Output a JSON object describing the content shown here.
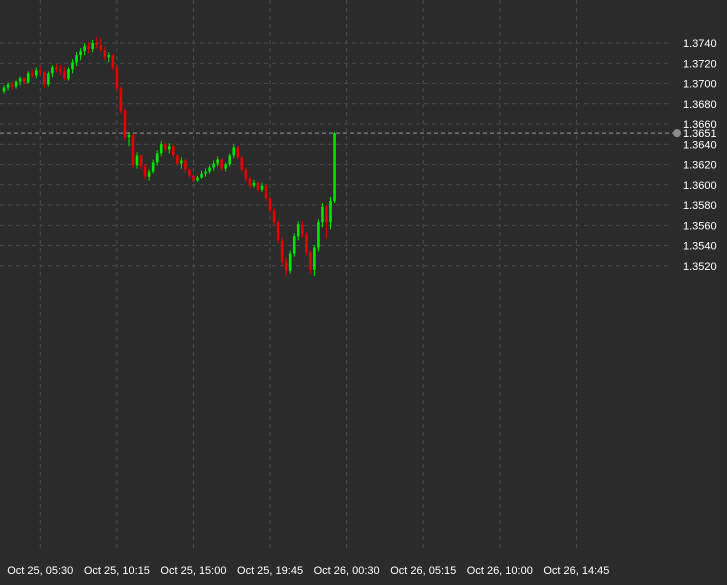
{
  "chart_data": {
    "type": "candlestick",
    "title": "",
    "xlabel": "",
    "ylabel": "",
    "ylim": [
      1.35,
      1.376
    ],
    "grid": true,
    "colors": {
      "background": "#2b2b2b",
      "grid": "#4a4a4a",
      "axis_text": "#ffffff",
      "bull": "#00e600",
      "bear": "#e60000",
      "current_line": "#9a9a9a",
      "current_marker": "#8c8c8c"
    },
    "y_ticks": [
      1.352,
      1.354,
      1.356,
      1.358,
      1.36,
      1.362,
      1.364,
      1.366,
      1.368,
      1.37,
      1.372,
      1.374
    ],
    "y_tick_labels": [
      "1.3520",
      "1.3540",
      "1.3560",
      "1.3580",
      "1.3600",
      "1.3620",
      "1.3640",
      "1.3660",
      "1.3680",
      "1.3700",
      "1.3720",
      "1.3740"
    ],
    "x_ticks": [
      {
        "label": "Oct 25, 05:30",
        "index": 9
      },
      {
        "label": "Oct 25, 10:15",
        "index": 28
      },
      {
        "label": "Oct 25, 15:00",
        "index": 47
      },
      {
        "label": "Oct 25, 19:45",
        "index": 66
      },
      {
        "label": "Oct 26, 00:30",
        "index": 85
      },
      {
        "label": "Oct 26, 05:15",
        "index": 104
      },
      {
        "label": "Oct 26, 10:00",
        "index": 123
      },
      {
        "label": "Oct 26, 14:45",
        "index": 142
      }
    ],
    "current_value": 1.3651,
    "current_label": "1.3651",
    "candles": [
      [
        1.3692,
        1.3698,
        1.369,
        1.3696
      ],
      [
        1.3696,
        1.3701,
        1.3693,
        1.3699
      ],
      [
        1.3699,
        1.3702,
        1.3694,
        1.3697
      ],
      [
        1.3697,
        1.3703,
        1.3695,
        1.3702
      ],
      [
        1.3702,
        1.3707,
        1.3698,
        1.3705
      ],
      [
        1.3705,
        1.3706,
        1.3699,
        1.3701
      ],
      [
        1.3701,
        1.3712,
        1.37,
        1.371
      ],
      [
        1.371,
        1.3714,
        1.3706,
        1.3708
      ],
      [
        1.3708,
        1.3716,
        1.3705,
        1.3713
      ],
      [
        1.3713,
        1.3717,
        1.3708,
        1.3711
      ],
      [
        1.3711,
        1.3712,
        1.3696,
        1.3699
      ],
      [
        1.3699,
        1.3712,
        1.3697,
        1.371
      ],
      [
        1.371,
        1.3718,
        1.3706,
        1.3716
      ],
      [
        1.3716,
        1.372,
        1.3711,
        1.3714
      ],
      [
        1.3714,
        1.3718,
        1.3708,
        1.3712
      ],
      [
        1.3712,
        1.3716,
        1.3703,
        1.3705
      ],
      [
        1.3705,
        1.3716,
        1.3703,
        1.3714
      ],
      [
        1.3714,
        1.3724,
        1.371,
        1.3721
      ],
      [
        1.3721,
        1.3731,
        1.3717,
        1.3728
      ],
      [
        1.3728,
        1.3735,
        1.3723,
        1.3732
      ],
      [
        1.3732,
        1.374,
        1.3728,
        1.3737
      ],
      [
        1.3737,
        1.3741,
        1.373,
        1.3734
      ],
      [
        1.3734,
        1.3743,
        1.3731,
        1.374
      ],
      [
        1.374,
        1.3746,
        1.3735,
        1.3738
      ],
      [
        1.3738,
        1.3745,
        1.3731,
        1.3733
      ],
      [
        1.3733,
        1.3736,
        1.3723,
        1.3726
      ],
      [
        1.3726,
        1.3731,
        1.3721,
        1.3728
      ],
      [
        1.3728,
        1.3729,
        1.3713,
        1.3716
      ],
      [
        1.3716,
        1.3718,
        1.3693,
        1.3695
      ],
      [
        1.3695,
        1.3697,
        1.367,
        1.3673
      ],
      [
        1.3673,
        1.3675,
        1.3644,
        1.3647
      ],
      [
        1.3647,
        1.3652,
        1.3638,
        1.3649
      ],
      [
        1.3649,
        1.365,
        1.3616,
        1.3619
      ],
      [
        1.3619,
        1.3632,
        1.3616,
        1.3629
      ],
      [
        1.3629,
        1.363,
        1.3615,
        1.3618
      ],
      [
        1.3618,
        1.3621,
        1.3605,
        1.3608
      ],
      [
        1.3608,
        1.3615,
        1.3604,
        1.3613
      ],
      [
        1.3613,
        1.3625,
        1.3611,
        1.3622
      ],
      [
        1.3622,
        1.3634,
        1.3619,
        1.3631
      ],
      [
        1.3631,
        1.3643,
        1.3628,
        1.364
      ],
      [
        1.364,
        1.3642,
        1.3632,
        1.3635
      ],
      [
        1.3635,
        1.3641,
        1.3631,
        1.3638
      ],
      [
        1.3638,
        1.364,
        1.3626,
        1.3629
      ],
      [
        1.3629,
        1.363,
        1.3618,
        1.3621
      ],
      [
        1.3621,
        1.3627,
        1.3616,
        1.3624
      ],
      [
        1.3624,
        1.3626,
        1.3612,
        1.3615
      ],
      [
        1.3615,
        1.3616,
        1.3607,
        1.3609
      ],
      [
        1.3609,
        1.3611,
        1.3602,
        1.3604
      ],
      [
        1.3604,
        1.3609,
        1.3603,
        1.3607
      ],
      [
        1.3607,
        1.3614,
        1.3606,
        1.3611
      ],
      [
        1.3611,
        1.3616,
        1.3608,
        1.3613
      ],
      [
        1.3613,
        1.3619,
        1.3611,
        1.3617
      ],
      [
        1.3617,
        1.3624,
        1.3614,
        1.3621
      ],
      [
        1.3621,
        1.3628,
        1.3618,
        1.3625
      ],
      [
        1.3625,
        1.3626,
        1.3614,
        1.3616
      ],
      [
        1.3616,
        1.3622,
        1.3613,
        1.362
      ],
      [
        1.362,
        1.3631,
        1.3618,
        1.3629
      ],
      [
        1.3629,
        1.364,
        1.3626,
        1.3637
      ],
      [
        1.3637,
        1.3639,
        1.3625,
        1.3627
      ],
      [
        1.3627,
        1.3629,
        1.3613,
        1.3615
      ],
      [
        1.3615,
        1.3617,
        1.3603,
        1.3606
      ],
      [
        1.3606,
        1.3608,
        1.3596,
        1.3599
      ],
      [
        1.3599,
        1.3605,
        1.3597,
        1.3602
      ],
      [
        1.3602,
        1.3603,
        1.3592,
        1.3595
      ],
      [
        1.3595,
        1.3602,
        1.3593,
        1.3599
      ],
      [
        1.3599,
        1.3601,
        1.3584,
        1.3587
      ],
      [
        1.3587,
        1.3588,
        1.3572,
        1.3575
      ],
      [
        1.3575,
        1.3577,
        1.356,
        1.3563
      ],
      [
        1.3563,
        1.3565,
        1.3542,
        1.3545
      ],
      [
        1.3545,
        1.3548,
        1.352,
        1.3524
      ],
      [
        1.3524,
        1.3528,
        1.351,
        1.3515
      ],
      [
        1.3515,
        1.3535,
        1.3512,
        1.3532
      ],
      [
        1.3532,
        1.3552,
        1.3529,
        1.3549
      ],
      [
        1.3549,
        1.3564,
        1.3545,
        1.3561
      ],
      [
        1.3561,
        1.3564,
        1.3548,
        1.3551
      ],
      [
        1.3551,
        1.3553,
        1.353,
        1.3533
      ],
      [
        1.3533,
        1.3535,
        1.3512,
        1.3516
      ],
      [
        1.3516,
        1.354,
        1.351,
        1.3538
      ],
      [
        1.3538,
        1.3566,
        1.3534,
        1.3563
      ],
      [
        1.3563,
        1.3582,
        1.3558,
        1.3578
      ],
      [
        1.3578,
        1.358,
        1.3547,
        1.3563
      ],
      [
        1.3563,
        1.3588,
        1.3556,
        1.3584
      ],
      [
        1.3584,
        1.3652,
        1.3582,
        1.3651
      ]
    ]
  }
}
